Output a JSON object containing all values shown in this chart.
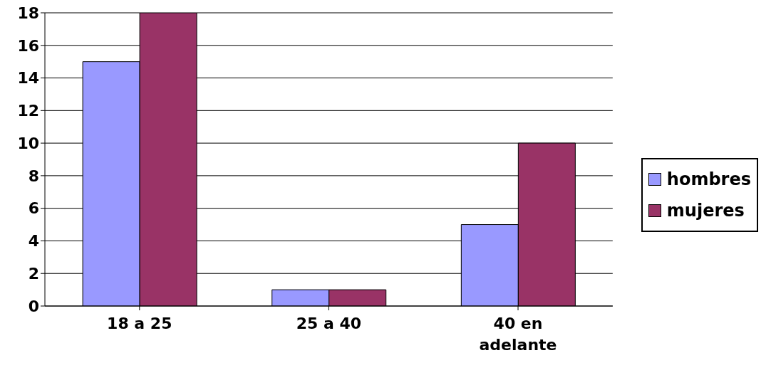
{
  "chart_data": {
    "type": "bar",
    "categories": [
      "18 a 25",
      "25 a 40",
      "40  en adelante"
    ],
    "series": [
      {
        "name": "hombres",
        "color": "#9999ff",
        "values": [
          15,
          1,
          5
        ]
      },
      {
        "name": "mujeres",
        "color": "#993366",
        "values": [
          18,
          1,
          10
        ]
      }
    ],
    "ylim": [
      0,
      18
    ],
    "yticks": [
      0,
      2,
      4,
      6,
      8,
      10,
      12,
      14,
      16,
      18
    ],
    "grid": "y",
    "legend": "right"
  }
}
